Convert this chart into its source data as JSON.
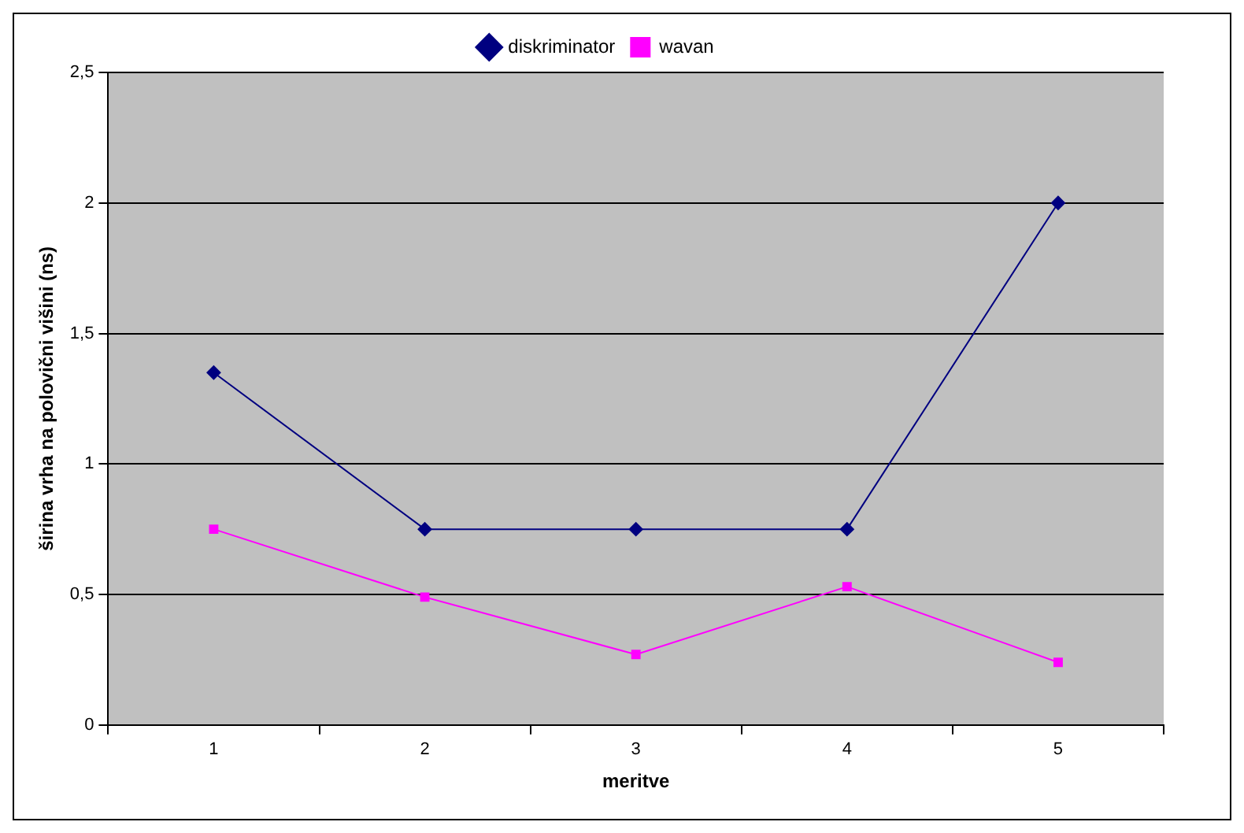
{
  "chart_data": {
    "type": "line",
    "xlabel": "meritve",
    "ylabel": "širina vrha na polovični višini (ns)",
    "categories": [
      "1",
      "2",
      "3",
      "4",
      "5"
    ],
    "series": [
      {
        "name": "diskriminator",
        "color": "#000080",
        "marker": "diamond",
        "values": [
          1.35,
          0.75,
          0.75,
          0.75,
          2.0
        ]
      },
      {
        "name": "wavan",
        "color": "#ff00ff",
        "marker": "square",
        "values": [
          0.75,
          0.49,
          0.27,
          0.53,
          0.24
        ]
      }
    ],
    "ylim": [
      0,
      2.5
    ],
    "yticks": [
      0,
      {
        "value": 0.5,
        "label": "0,5"
      },
      1,
      {
        "value": 1.5,
        "label": "1,5"
      },
      2,
      {
        "value": 2.5,
        "label": "2,5"
      }
    ],
    "grid": "y",
    "legend": "top",
    "line_style": "solid"
  }
}
